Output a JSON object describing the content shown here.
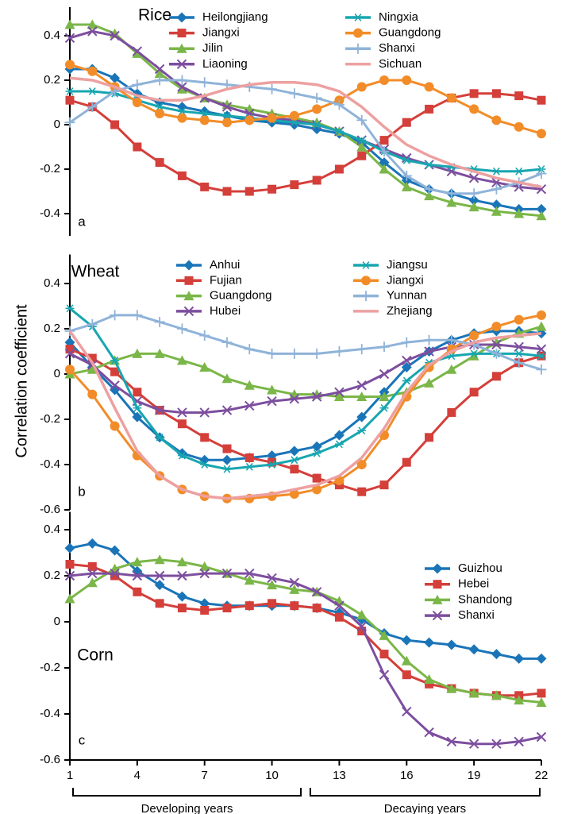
{
  "chart_data": [
    {
      "type": "line",
      "title": "Rice",
      "label": "a",
      "x": [
        1,
        2,
        3,
        4,
        5,
        6,
        7,
        8,
        9,
        10,
        11,
        12,
        13,
        14,
        15,
        16,
        17,
        18,
        19,
        20,
        21,
        22
      ],
      "xlim": [
        1,
        22
      ],
      "ylim": [
        -0.5,
        0.5
      ],
      "yticks": [
        -0.4,
        -0.2,
        0,
        0.2,
        0.4
      ],
      "series": [
        {
          "name": "Heilongjiang",
          "color": "#1a75b8",
          "marker": "diamond",
          "values": [
            0.25,
            0.25,
            0.21,
            0.14,
            0.1,
            0.08,
            0.06,
            0.04,
            0.02,
            0.01,
            0,
            -0.02,
            -0.04,
            -0.08,
            -0.17,
            -0.25,
            -0.29,
            -0.31,
            -0.34,
            -0.36,
            -0.38,
            -0.38
          ]
        },
        {
          "name": "Jiangxi",
          "color": "#d43f3a",
          "marker": "square",
          "values": [
            0.11,
            0.08,
            0,
            -0.1,
            -0.17,
            -0.23,
            -0.28,
            -0.3,
            -0.3,
            -0.29,
            -0.27,
            -0.25,
            -0.2,
            -0.14,
            -0.07,
            0.01,
            0.07,
            0.12,
            0.14,
            0.14,
            0.13,
            0.11
          ]
        },
        {
          "name": "Jilin",
          "color": "#7ab648",
          "marker": "triangle",
          "values": [
            0.45,
            0.45,
            0.41,
            0.32,
            0.23,
            0.16,
            0.12,
            0.09,
            0.07,
            0.05,
            0.03,
            0.01,
            -0.03,
            -0.1,
            -0.2,
            -0.28,
            -0.32,
            -0.35,
            -0.37,
            -0.39,
            -0.4,
            -0.41
          ]
        },
        {
          "name": "Liaoning",
          "color": "#7d4e9f",
          "marker": "x",
          "values": [
            0.39,
            0.42,
            0.4,
            0.33,
            0.25,
            0.17,
            0.12,
            0.08,
            0.05,
            0.03,
            0.02,
            0,
            -0.03,
            -0.07,
            -0.11,
            -0.15,
            -0.18,
            -0.21,
            -0.24,
            -0.26,
            -0.28,
            -0.29
          ]
        },
        {
          "name": "Ningxia",
          "color": "#17a6b0",
          "marker": "star",
          "values": [
            0.15,
            0.15,
            0.14,
            0.11,
            0.08,
            0.06,
            0.05,
            0.04,
            0.03,
            0.02,
            0.01,
            0,
            -0.03,
            -0.07,
            -0.12,
            -0.16,
            -0.18,
            -0.19,
            -0.2,
            -0.21,
            -0.21,
            -0.2
          ]
        },
        {
          "name": "Guangdong",
          "color": "#f28c28",
          "marker": "circle",
          "values": [
            0.27,
            0.24,
            0.17,
            0.1,
            0.05,
            0.03,
            0.02,
            0.01,
            0.02,
            0.03,
            0.04,
            0.07,
            0.11,
            0.17,
            0.2,
            0.2,
            0.17,
            0.12,
            0.07,
            0.02,
            -0.01,
            -0.04
          ]
        },
        {
          "name": "Shanxi",
          "color": "#8fb3d9",
          "marker": "plus",
          "values": [
            0.01,
            0.08,
            0.15,
            0.18,
            0.2,
            0.2,
            0.19,
            0.18,
            0.17,
            0.16,
            0.14,
            0.12,
            0.09,
            0.02,
            -0.12,
            -0.23,
            -0.29,
            -0.31,
            -0.31,
            -0.29,
            -0.26,
            -0.22
          ]
        },
        {
          "name": "Sichuan",
          "color": "#eda0a0",
          "values": [
            0.21,
            0.2,
            0.17,
            0.13,
            0.11,
            0.11,
            0.13,
            0.16,
            0.18,
            0.19,
            0.19,
            0.18,
            0.15,
            0.08,
            -0.01,
            -0.09,
            -0.14,
            -0.18,
            -0.21,
            -0.24,
            -0.26,
            -0.28
          ]
        }
      ]
    },
    {
      "type": "line",
      "title": "Wheat",
      "label": "b",
      "ylabel": "Correlation coefficient",
      "x": [
        1,
        2,
        3,
        4,
        5,
        6,
        7,
        8,
        9,
        10,
        11,
        12,
        13,
        14,
        15,
        16,
        17,
        18,
        19,
        20,
        21,
        22
      ],
      "xlim": [
        1,
        22
      ],
      "ylim": [
        -0.6,
        0.5
      ],
      "yticks": [
        -0.6,
        -0.4,
        -0.2,
        0,
        0.2,
        0.4
      ],
      "series": [
        {
          "name": "Anhui",
          "color": "#1a75b8",
          "marker": "diamond",
          "values": [
            0.14,
            0.03,
            -0.07,
            -0.19,
            -0.28,
            -0.35,
            -0.38,
            -0.38,
            -0.37,
            -0.36,
            -0.34,
            -0.32,
            -0.27,
            -0.19,
            -0.08,
            0.03,
            0.1,
            0.15,
            0.18,
            0.19,
            0.19,
            0.18
          ]
        },
        {
          "name": "Fujian",
          "color": "#d43f3a",
          "marker": "square",
          "values": [
            0.11,
            0.07,
            0.01,
            -0.08,
            -0.16,
            -0.22,
            -0.28,
            -0.33,
            -0.37,
            -0.39,
            -0.42,
            -0.46,
            -0.49,
            -0.52,
            -0.49,
            -0.39,
            -0.28,
            -0.17,
            -0.08,
            -0.01,
            0.05,
            0.08
          ]
        },
        {
          "name": "Guangdong",
          "color": "#7ab648",
          "marker": "triangle",
          "values": [
            0,
            0.02,
            0.06,
            0.09,
            0.09,
            0.06,
            0.03,
            -0.02,
            -0.05,
            -0.07,
            -0.09,
            -0.09,
            -0.1,
            -0.1,
            -0.1,
            -0.08,
            -0.04,
            0.02,
            0.08,
            0.14,
            0.18,
            0.21
          ]
        },
        {
          "name": "Hubei",
          "color": "#7d4e9f",
          "marker": "x",
          "values": [
            0.09,
            0.04,
            -0.05,
            -0.12,
            -0.16,
            -0.17,
            -0.17,
            -0.16,
            -0.14,
            -0.12,
            -0.11,
            -0.1,
            -0.08,
            -0.05,
            0,
            0.06,
            0.1,
            0.12,
            0.13,
            0.13,
            0.12,
            0.11
          ]
        },
        {
          "name": "Jiangsu",
          "color": "#17a6b0",
          "marker": "star",
          "values": [
            0.29,
            0.21,
            0.06,
            -0.15,
            -0.28,
            -0.36,
            -0.4,
            -0.42,
            -0.41,
            -0.4,
            -0.38,
            -0.35,
            -0.31,
            -0.25,
            -0.15,
            -0.03,
            0.05,
            0.08,
            0.09,
            0.09,
            0.09,
            0.08
          ]
        },
        {
          "name": "Jiangxi",
          "color": "#f28c28",
          "marker": "circle",
          "values": [
            0.02,
            -0.09,
            -0.23,
            -0.36,
            -0.45,
            -0.51,
            -0.54,
            -0.55,
            -0.55,
            -0.54,
            -0.53,
            -0.51,
            -0.47,
            -0.4,
            -0.27,
            -0.1,
            0.03,
            0.11,
            0.17,
            0.21,
            0.24,
            0.26
          ]
        },
        {
          "name": "Yunnan",
          "color": "#8fb3d9",
          "marker": "plus",
          "values": [
            0.19,
            0.22,
            0.26,
            0.26,
            0.23,
            0.2,
            0.17,
            0.14,
            0.11,
            0.09,
            0.09,
            0.09,
            0.1,
            0.11,
            0.12,
            0.14,
            0.15,
            0.15,
            0.13,
            0.09,
            0.05,
            0.02
          ]
        },
        {
          "name": "Zhejiang",
          "color": "#eda0a0",
          "values": [
            0.19,
            0.05,
            -0.15,
            -0.34,
            -0.45,
            -0.51,
            -0.54,
            -0.55,
            -0.54,
            -0.53,
            -0.51,
            -0.49,
            -0.45,
            -0.37,
            -0.24,
            -0.08,
            0.04,
            0.1,
            0.14,
            0.16,
            0.17,
            0.18
          ]
        }
      ]
    },
    {
      "type": "line",
      "title": "Corn",
      "label": "c",
      "x": [
        1,
        2,
        3,
        4,
        5,
        6,
        7,
        8,
        9,
        10,
        11,
        12,
        13,
        14,
        15,
        16,
        17,
        18,
        19,
        20,
        21,
        22
      ],
      "xlim": [
        1,
        22
      ],
      "xticks": [
        1,
        4,
        7,
        10,
        13,
        16,
        19,
        22
      ],
      "ylim": [
        -0.6,
        0.45
      ],
      "yticks": [
        -0.6,
        -0.4,
        -0.2,
        0,
        0.2,
        0.4
      ],
      "annotations": [
        "Developing years",
        "Decaying years"
      ],
      "series": [
        {
          "name": "Guizhou",
          "color": "#1a75b8",
          "marker": "diamond",
          "values": [
            0.32,
            0.34,
            0.31,
            0.22,
            0.16,
            0.11,
            0.08,
            0.07,
            0.07,
            0.07,
            0.07,
            0.06,
            0.04,
            0.01,
            -0.05,
            -0.08,
            -0.09,
            -0.1,
            -0.12,
            -0.14,
            -0.16,
            -0.16
          ]
        },
        {
          "name": "Hebei",
          "color": "#d43f3a",
          "marker": "square",
          "values": [
            0.25,
            0.24,
            0.2,
            0.13,
            0.08,
            0.06,
            0.05,
            0.06,
            0.07,
            0.08,
            0.07,
            0.06,
            0.02,
            -0.04,
            -0.14,
            -0.23,
            -0.27,
            -0.29,
            -0.31,
            -0.32,
            -0.32,
            -0.31
          ]
        },
        {
          "name": "Shandong",
          "color": "#7ab648",
          "marker": "triangle",
          "values": [
            0.1,
            0.17,
            0.23,
            0.26,
            0.27,
            0.26,
            0.24,
            0.21,
            0.18,
            0.16,
            0.14,
            0.13,
            0.09,
            0.03,
            -0.06,
            -0.17,
            -0.25,
            -0.29,
            -0.31,
            -0.32,
            -0.34,
            -0.35
          ]
        },
        {
          "name": "Shanxi",
          "color": "#7d4e9f",
          "marker": "x",
          "values": [
            0.2,
            0.21,
            0.21,
            0.2,
            0.2,
            0.2,
            0.21,
            0.21,
            0.21,
            0.19,
            0.17,
            0.13,
            0.07,
            -0.02,
            -0.23,
            -0.39,
            -0.48,
            -0.52,
            -0.53,
            -0.53,
            -0.52,
            -0.5
          ]
        }
      ]
    }
  ]
}
